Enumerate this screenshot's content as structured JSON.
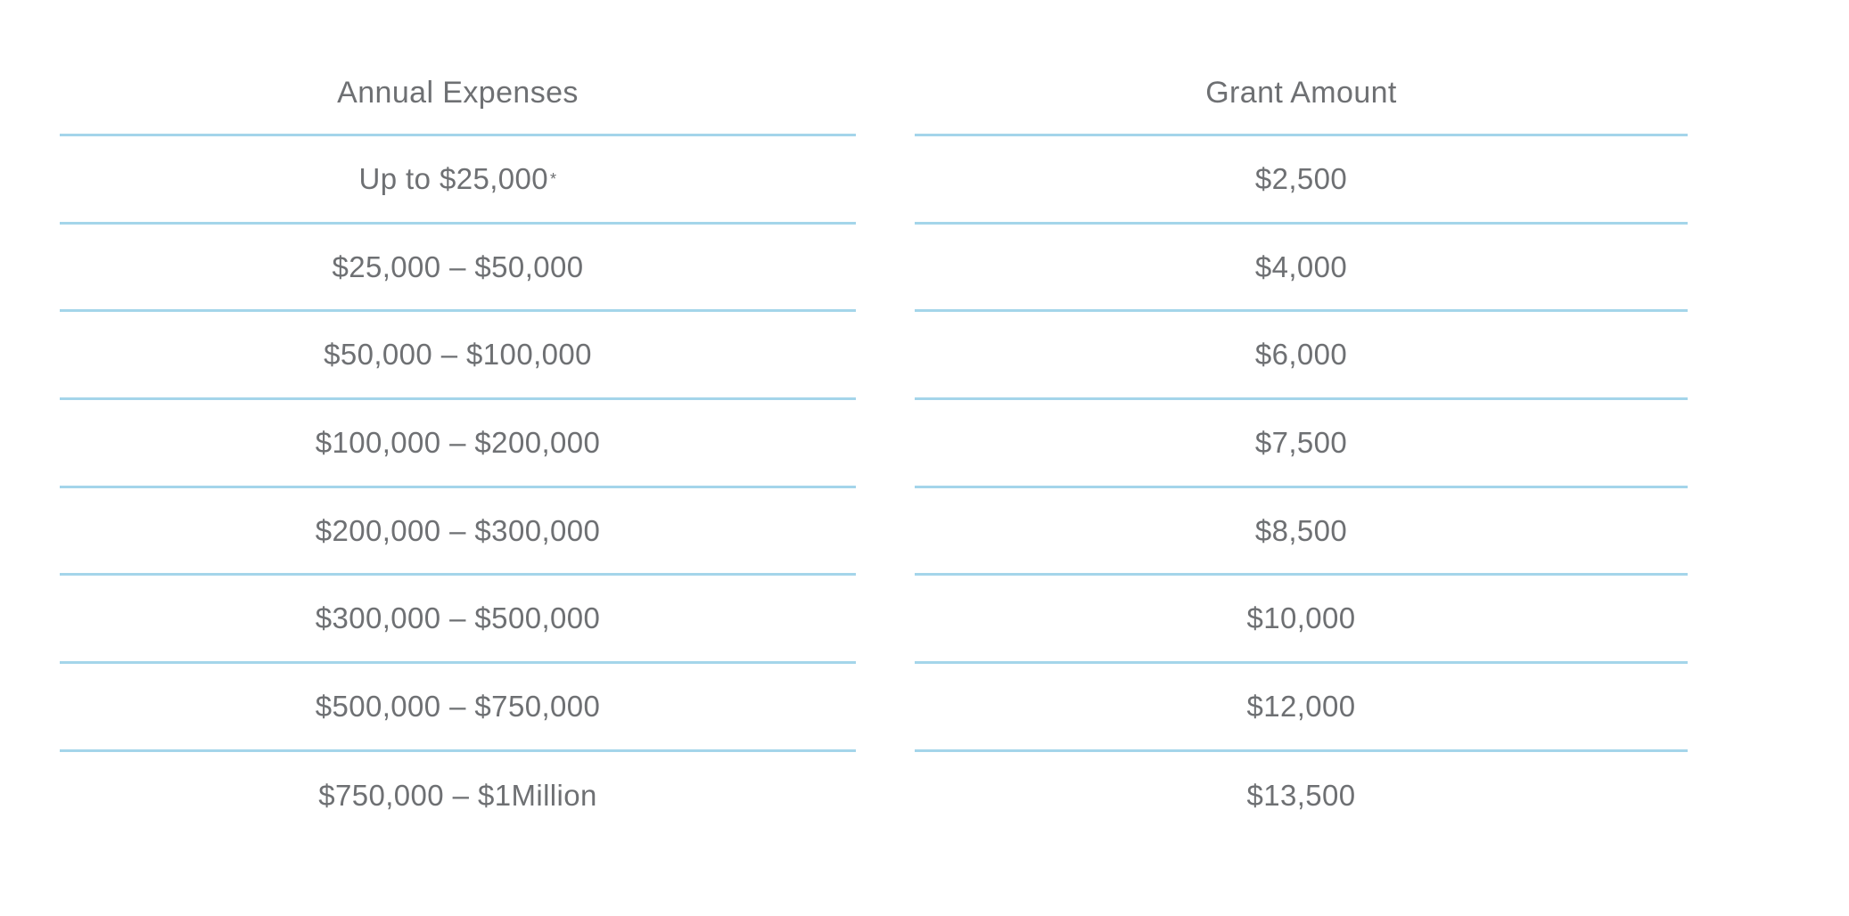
{
  "table": {
    "line_color": "#a4d5ea",
    "text_color": "#6e7073",
    "columns": [
      {
        "header": "Annual Expenses"
      },
      {
        "header": "Grant Amount"
      }
    ],
    "rows": [
      {
        "expenses": "Up to $25,000",
        "expenses_note": "*",
        "grant": "$2,500"
      },
      {
        "expenses": "$25,000 – $50,000",
        "grant": "$4,000"
      },
      {
        "expenses": "$50,000 – $100,000",
        "grant": "$6,000"
      },
      {
        "expenses": "$100,000 – $200,000",
        "grant": "$7,500"
      },
      {
        "expenses": "$200,000 – $300,000",
        "grant": "$8,500"
      },
      {
        "expenses": "$300,000 – $500,000",
        "grant": "$10,000"
      },
      {
        "expenses": "$500,000 – $750,000",
        "grant": "$12,000"
      },
      {
        "expenses": "$750,000 – $1Million",
        "grant": "$13,500"
      }
    ]
  }
}
